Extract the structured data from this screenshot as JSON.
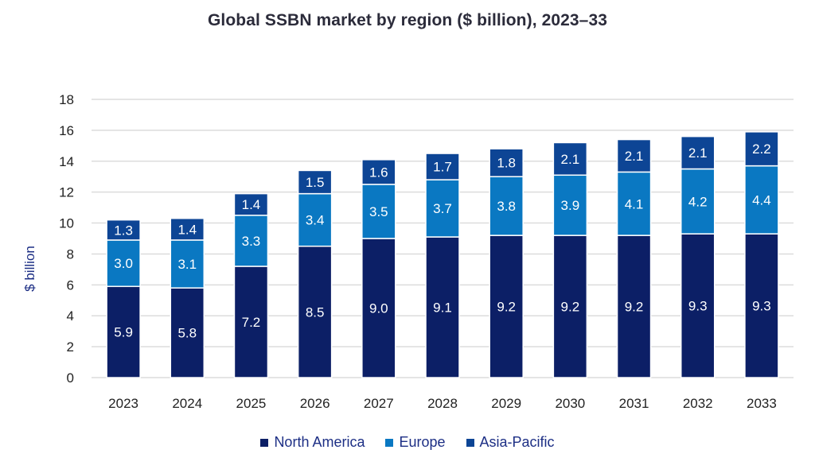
{
  "chart_data": {
    "type": "bar",
    "stacked": true,
    "title": "Global SSBN market by region ($ billion), 2023–33",
    "xlabel": "",
    "ylabel": "$ billion",
    "ylim": [
      0,
      18
    ],
    "yticks": [
      0,
      2,
      4,
      6,
      8,
      10,
      12,
      14,
      16,
      18
    ],
    "grid": true,
    "legend_position": "bottom",
    "categories": [
      "2023",
      "2024",
      "2025",
      "2026",
      "2027",
      "2028",
      "2029",
      "2030",
      "2031",
      "2032",
      "2033"
    ],
    "series": [
      {
        "name": "North America",
        "color": "#0c1f66",
        "values": [
          5.9,
          5.8,
          7.2,
          8.5,
          9.0,
          9.1,
          9.2,
          9.2,
          9.2,
          9.3,
          9.3
        ],
        "labels": [
          "5.9",
          "5.8",
          "7.2",
          "8.5",
          "9.0",
          "9.1",
          "9.2",
          "9.2",
          "9.2",
          "9.3",
          "9.3"
        ]
      },
      {
        "name": "Europe",
        "color": "#0a78c2",
        "values": [
          3.0,
          3.1,
          3.3,
          3.4,
          3.5,
          3.7,
          3.8,
          3.9,
          4.1,
          4.2,
          4.4
        ],
        "labels": [
          "3.0",
          "3.1",
          "3.3",
          "3.4",
          "3.5",
          "3.7",
          "3.8",
          "3.9",
          "4.1",
          "4.2",
          "4.4"
        ]
      },
      {
        "name": "Asia-Pacific",
        "color": "#0d4595",
        "values": [
          1.3,
          1.4,
          1.4,
          1.5,
          1.6,
          1.7,
          1.8,
          2.1,
          2.1,
          2.1,
          2.2
        ],
        "labels": [
          "1.3",
          "1.4",
          "1.4",
          "1.5",
          "1.6",
          "1.7",
          "1.8",
          "2.1",
          "2.1",
          "2.1",
          "2.2"
        ]
      }
    ]
  }
}
